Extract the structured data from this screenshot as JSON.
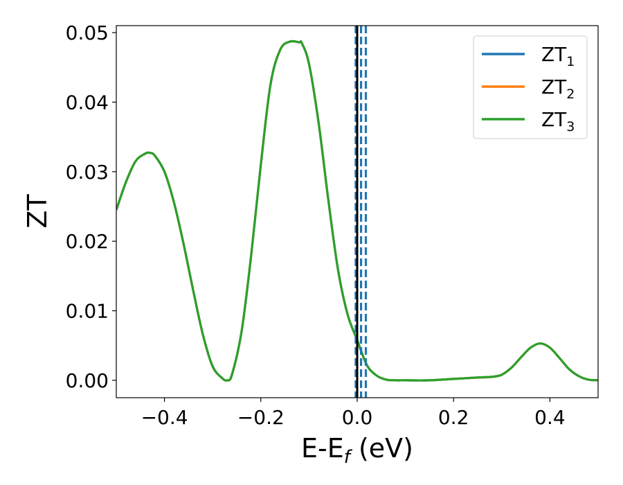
{
  "chart_data": {
    "type": "line",
    "xlabel": {
      "main": "E-E",
      "sub": "f",
      "suffix": " (eV)"
    },
    "ylabel": "ZT",
    "xlim": [
      -0.5,
      0.5
    ],
    "ylim": [
      -0.0025,
      0.051
    ],
    "xticks": [
      -0.4,
      -0.2,
      0.0,
      0.2,
      0.4
    ],
    "xtick_labels": [
      "−0.4",
      "−0.2",
      "0.0",
      "0.2",
      "0.4"
    ],
    "yticks": [
      0.0,
      0.01,
      0.02,
      0.03,
      0.04,
      0.05
    ],
    "ytick_labels": [
      "0.00",
      "0.01",
      "0.02",
      "0.03",
      "0.04",
      "0.05"
    ],
    "grid": false,
    "legend_position": "top-right",
    "series": [
      {
        "name": "ZT1",
        "label_main": "ZT",
        "label_sub": "1",
        "color": "#1f77b4"
      },
      {
        "name": "ZT2",
        "label_main": "ZT",
        "label_sub": "2",
        "color": "#ff7f0e"
      },
      {
        "name": "ZT3",
        "label_main": "ZT",
        "label_sub": "3",
        "color": "#2ca02c"
      }
    ],
    "x": [
      -0.5,
      -0.48,
      -0.46,
      -0.44,
      -0.43,
      -0.42,
      -0.4,
      -0.38,
      -0.36,
      -0.34,
      -0.32,
      -0.3,
      -0.28,
      -0.27,
      -0.26,
      -0.24,
      -0.22,
      -0.2,
      -0.18,
      -0.16,
      -0.14,
      -0.12,
      -0.115,
      -0.1,
      -0.08,
      -0.06,
      -0.04,
      -0.02,
      0.0,
      0.02,
      0.04,
      0.06,
      0.08,
      0.1,
      0.15,
      0.2,
      0.25,
      0.28,
      0.3,
      0.32,
      0.34,
      0.36,
      0.38,
      0.4,
      0.42,
      0.44,
      0.46,
      0.48,
      0.5
    ],
    "y": [
      0.0245,
      0.0285,
      0.0315,
      0.0326,
      0.0327,
      0.0323,
      0.03,
      0.0255,
      0.0195,
      0.0128,
      0.0065,
      0.002,
      0.0003,
      0.0,
      0.0008,
      0.007,
      0.018,
      0.031,
      0.0425,
      0.0475,
      0.0487,
      0.0486,
      0.0485,
      0.0455,
      0.037,
      0.026,
      0.016,
      0.0095,
      0.0058,
      0.0022,
      0.0007,
      0.0001,
      0.0,
      0.0,
      0.0,
      0.0002,
      0.0004,
      0.0005,
      0.0008,
      0.0018,
      0.0033,
      0.0047,
      0.0053,
      0.0047,
      0.0032,
      0.0016,
      0.0006,
      0.0001,
      0.0
    ],
    "vlines": [
      {
        "x": -0.003,
        "style": "dashed",
        "color": "#1f77b4"
      },
      {
        "x": 0.0,
        "style": "solid",
        "color": "#000000"
      },
      {
        "x": 0.008,
        "style": "dashed",
        "color": "#1f77b4"
      },
      {
        "x": 0.018,
        "style": "dashed",
        "color": "#1f77b4"
      }
    ]
  }
}
